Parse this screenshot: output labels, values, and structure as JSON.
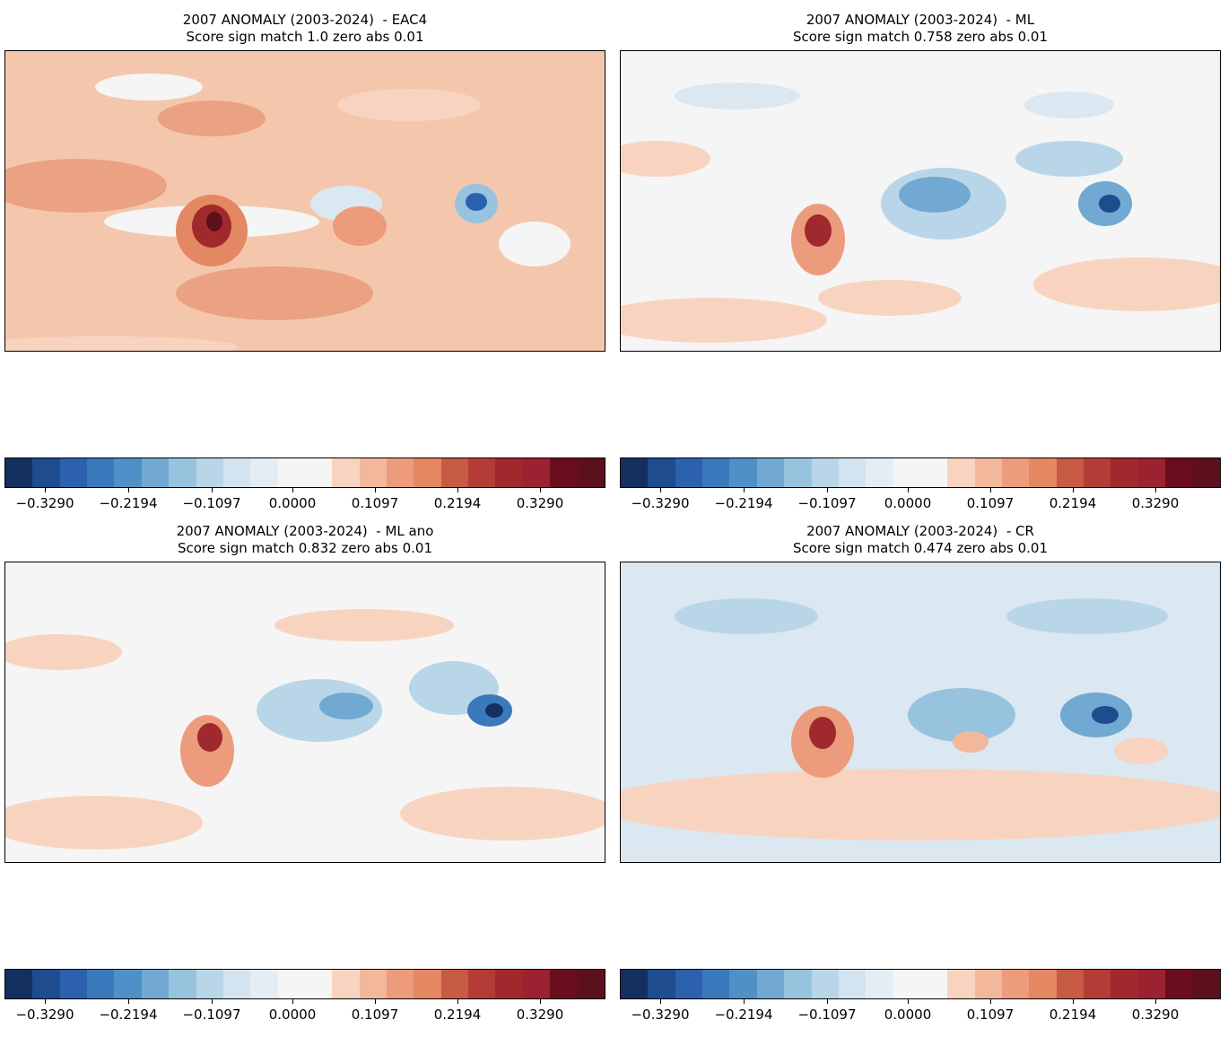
{
  "panels": [
    {
      "id": "eac4",
      "title_line1": "2007 ANOMALY (2003-2024)  - EAC4",
      "title_line2": "Score sign match 1.0 zero abs 0.01",
      "background": "#f4c7ad"
    },
    {
      "id": "ml",
      "title_line1": "2007 ANOMALY (2003-2024)  - ML",
      "title_line2": "Score sign match 0.758 zero abs 0.01",
      "background": "#f4f4f4"
    },
    {
      "id": "ml-ano",
      "title_line1": "2007 ANOMALY (2003-2024)  - ML ano",
      "title_line2": "Score sign match 0.832 zero abs 0.01",
      "background": "#f4f4f4"
    },
    {
      "id": "cr",
      "title_line1": "2007 ANOMALY (2003-2024)  - CR",
      "title_line2": "Score sign match 0.474 zero abs 0.01",
      "background": "#dbe7f1"
    }
  ],
  "colorbar": {
    "tick_labels": [
      "−0.3290",
      "−0.2194",
      "−0.1097",
      "0.0000",
      "0.1097",
      "0.2194",
      "0.3290"
    ],
    "colors": [
      "#13305e",
      "#1f4b8f",
      "#2c62ad",
      "#3a79bb",
      "#4f91c6",
      "#71a9d2",
      "#97c3df",
      "#b9d6e9",
      "#d3e4f0",
      "#e4edf4",
      "#f5f5f5",
      "#f5f5f5",
      "#f8d4c0",
      "#f3b79b",
      "#ec9c7c",
      "#e48763",
      "#c65a43",
      "#b33c36",
      "#a0292d",
      "#9b2230",
      "#6b0d1e",
      "#5c101b"
    ],
    "colormap": "RdBu_r"
  },
  "colors": {
    "coast": "#000000"
  }
}
